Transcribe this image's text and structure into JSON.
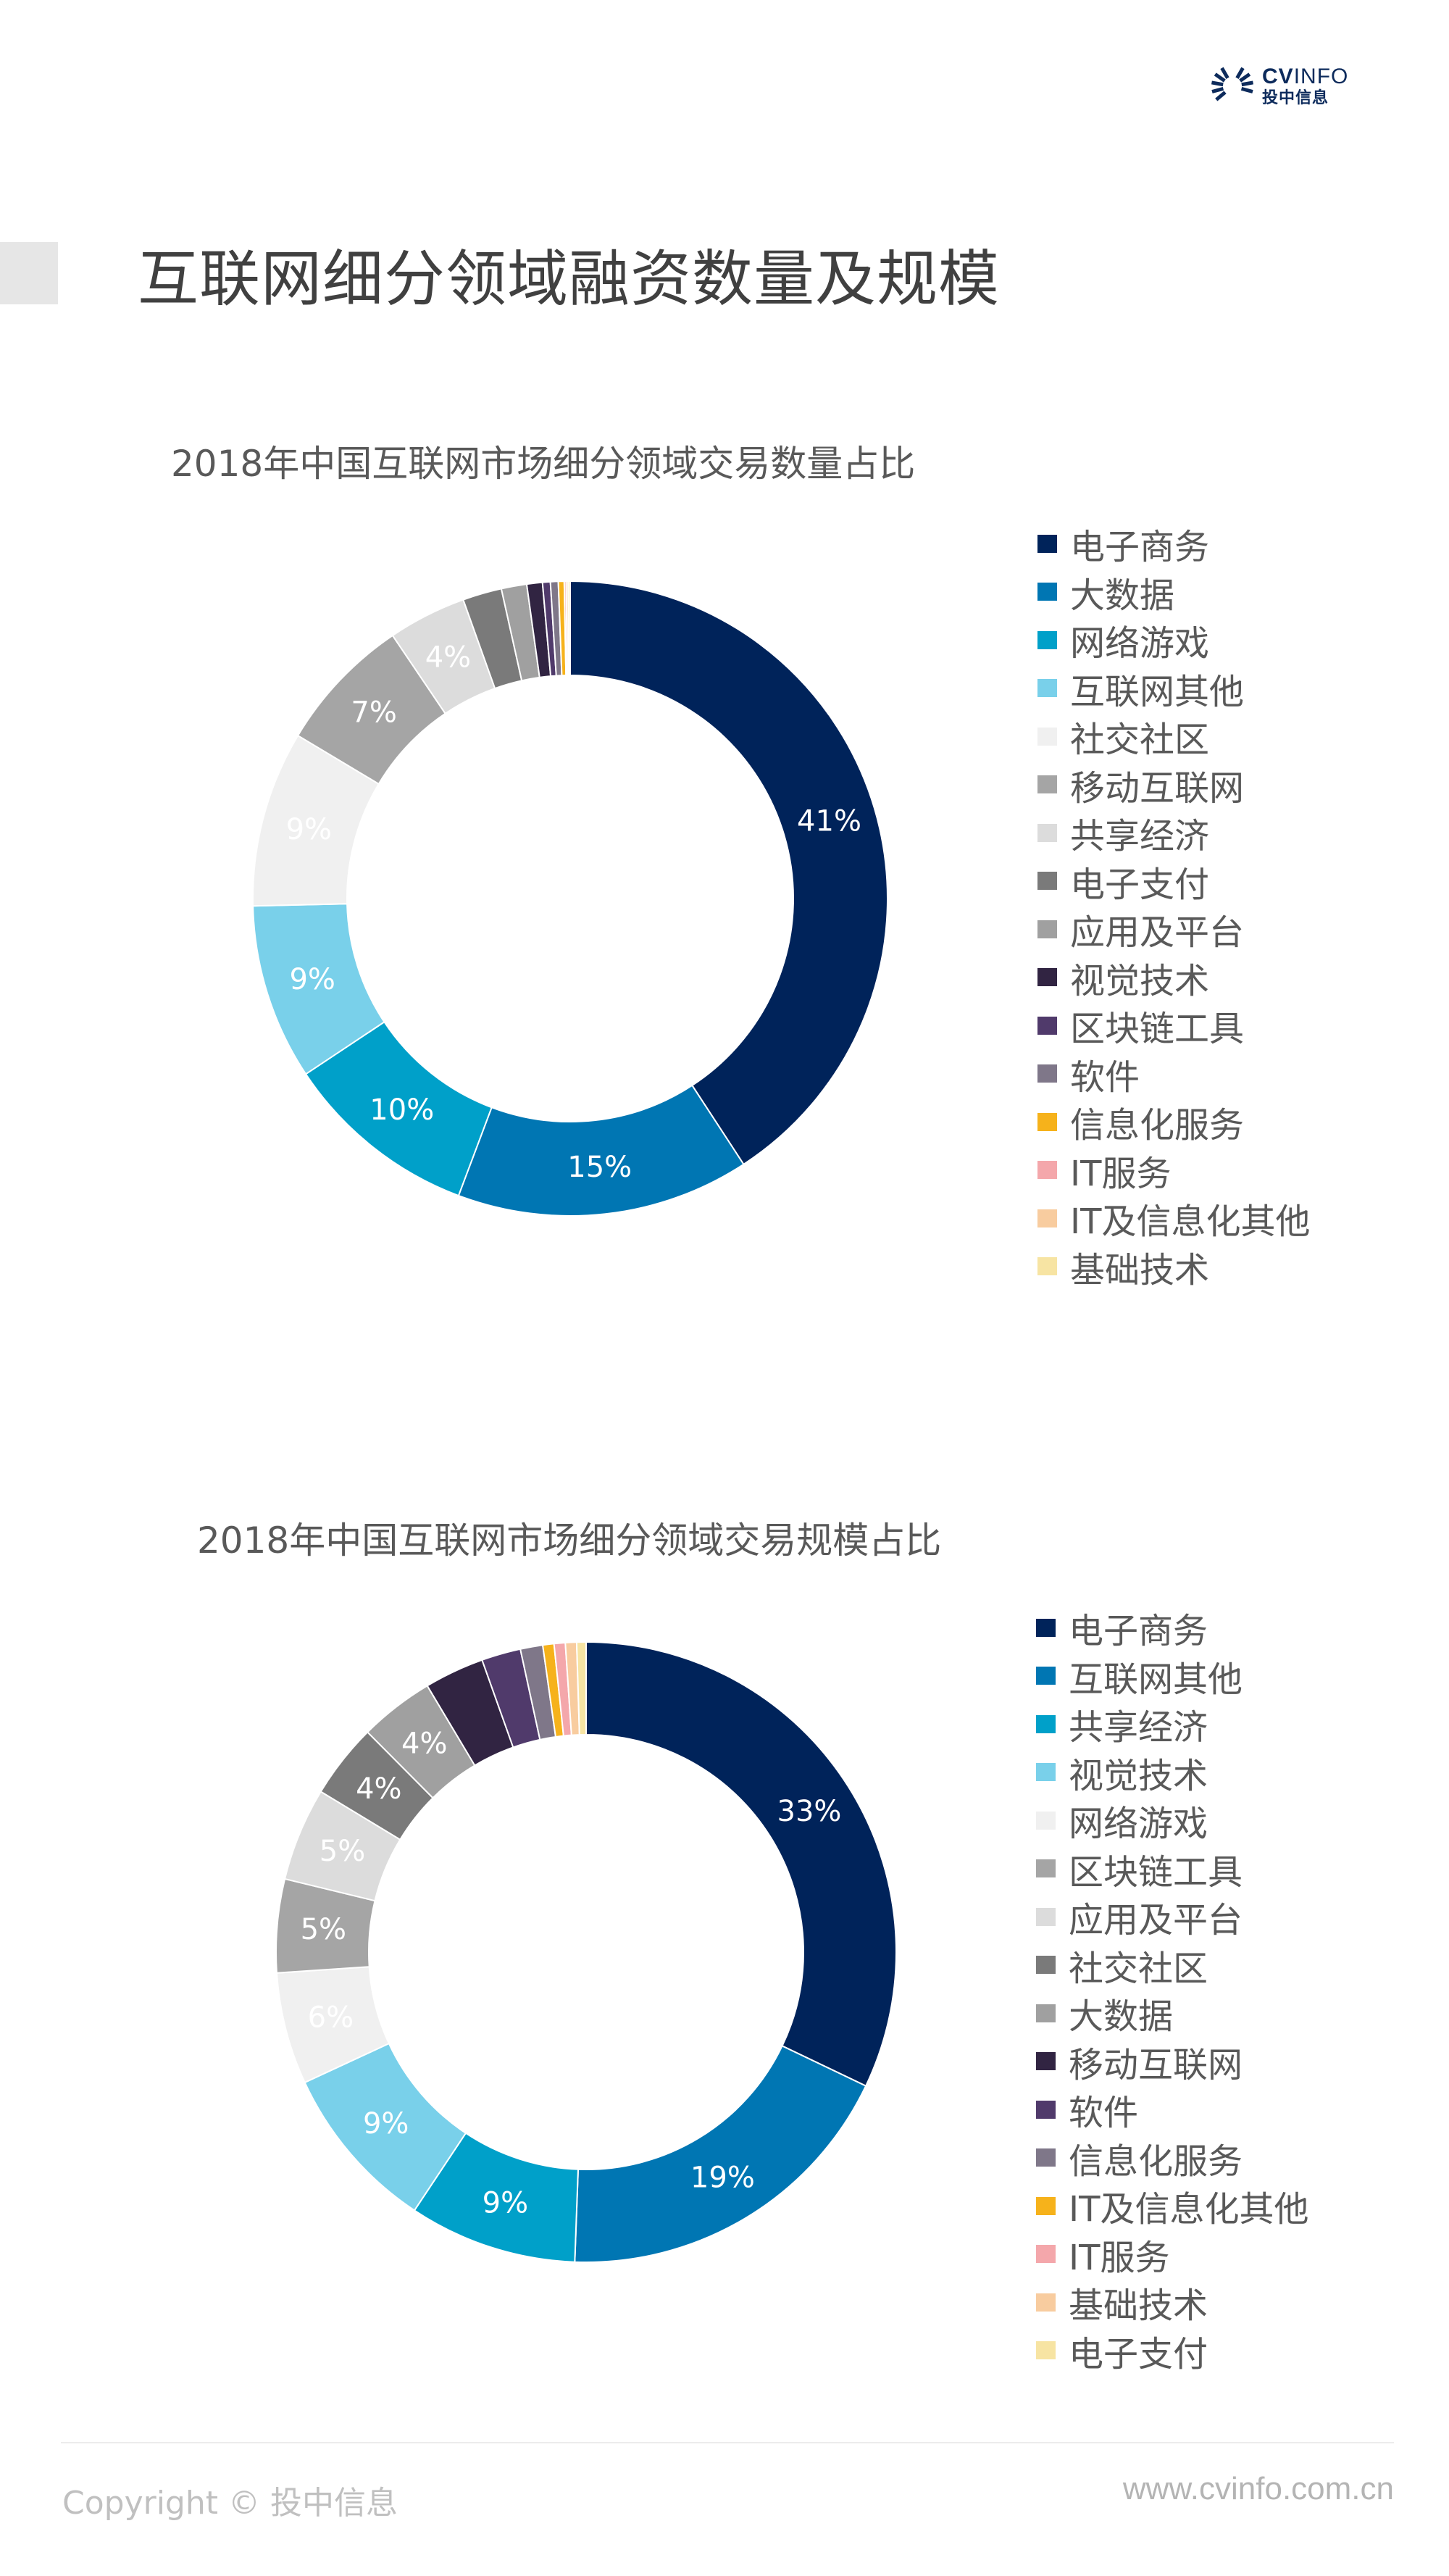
{
  "header": {
    "logo_en_bold": "CV",
    "logo_en_light": "INFO",
    "logo_cn": "投中信息",
    "brand_color": "#0d2b5c"
  },
  "page_title": "互联网细分领域融资数量及规模",
  "chart_data": [
    {
      "type": "pie",
      "variant": "donut",
      "title": "2018年中国互联网市场细分领域交易数量占比",
      "legend_position": "right",
      "start_angle": "12 o'clock",
      "direction": "clockwise",
      "categories": [
        "电子商务",
        "大数据",
        "网络游戏",
        "互联网其他",
        "社交社区",
        "移动互联网",
        "共享经济",
        "电子支付",
        "应用及平台",
        "视觉技术",
        "区块链工具",
        "软件",
        "信息化服务",
        "IT服务",
        "IT及信息化其他",
        "基础技术"
      ],
      "values": [
        41,
        15,
        10,
        9,
        9,
        7,
        4,
        2,
        1.3,
        0.8,
        0.4,
        0.4,
        0.3,
        0.1,
        0.1,
        0.1
      ],
      "labels": [
        "41%",
        "15%",
        "10%",
        "9%",
        "9%",
        "7%",
        "4%",
        "",
        "",
        "",
        "",
        "",
        "",
        "",
        "",
        ""
      ],
      "colors": [
        "#00235a",
        "#0076b3",
        "#00a0c9",
        "#79d0ea",
        "#f0f0f0",
        "#a5a5a5",
        "#dcdcdc",
        "#7a7a7a",
        "#a0a0a0",
        "#312442",
        "#503a6b",
        "#7f7789",
        "#f6b21b",
        "#f4a7ab",
        "#f8cc9f",
        "#f7e4a3"
      ]
    },
    {
      "type": "pie",
      "variant": "donut",
      "title": "2018年中国互联网市场细分领域交易规模占比",
      "legend_position": "right",
      "start_angle": "12 o'clock",
      "direction": "clockwise",
      "categories": [
        "电子商务",
        "互联网其他",
        "共享经济",
        "视觉技术",
        "网络游戏",
        "区块链工具",
        "应用及平台",
        "社交社区",
        "大数据",
        "移动互联网",
        "软件",
        "信息化服务",
        "IT及信息化其他",
        "IT服务",
        "基础技术",
        "电子支付"
      ],
      "values": [
        33,
        19,
        9,
        9,
        6,
        5,
        5,
        4,
        4,
        3.2,
        2.1,
        1.2,
        0.6,
        0.6,
        0.6,
        0.5
      ],
      "labels": [
        "33%",
        "19%",
        "9%",
        "9%",
        "6%",
        "5%",
        "5%",
        "4%",
        "4%",
        "",
        "",
        "",
        "",
        "",
        "",
        ""
      ],
      "colors": [
        "#00235a",
        "#0076b3",
        "#00a0c9",
        "#79d0ea",
        "#f0f0f0",
        "#a5a5a5",
        "#dcdcdc",
        "#7a7a7a",
        "#a0a0a0",
        "#312442",
        "#503a6b",
        "#7f7789",
        "#f6b21b",
        "#f4a7ab",
        "#f8cc9f",
        "#f7e4a3"
      ]
    }
  ],
  "footer": {
    "copyright": "Copyright © 投中信息",
    "website": "www.cvinfo.com.cn"
  }
}
